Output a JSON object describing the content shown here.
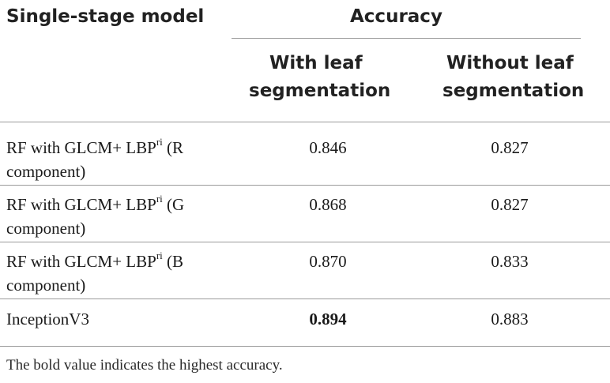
{
  "header": {
    "model_label": "Single-stage model",
    "group_label": "Accuracy",
    "col1": [
      "With leaf",
      "segmentation"
    ],
    "col2": [
      "Without leaf",
      "segmentation"
    ]
  },
  "rows": [
    {
      "model_line1": "RF with GLCM+ LBP",
      "sup": "ri",
      "model_line1_tail": " (R",
      "model_line2": "component)",
      "with": "0.846",
      "without": "0.827"
    },
    {
      "model_line1": "RF with GLCM+ LBP",
      "sup": "ri",
      "model_line1_tail": " (G",
      "model_line2": "component)",
      "with": "0.868",
      "without": "0.827"
    },
    {
      "model_line1": "RF with GLCM+ LBP",
      "sup": "ri",
      "model_line1_tail": " (B",
      "model_line2": "component)",
      "with": "0.870",
      "without": "0.833"
    },
    {
      "model_line1": "InceptionV3",
      "with": "0.894",
      "without": "0.883"
    }
  ],
  "footnote": "The bold value indicates the highest accuracy."
}
